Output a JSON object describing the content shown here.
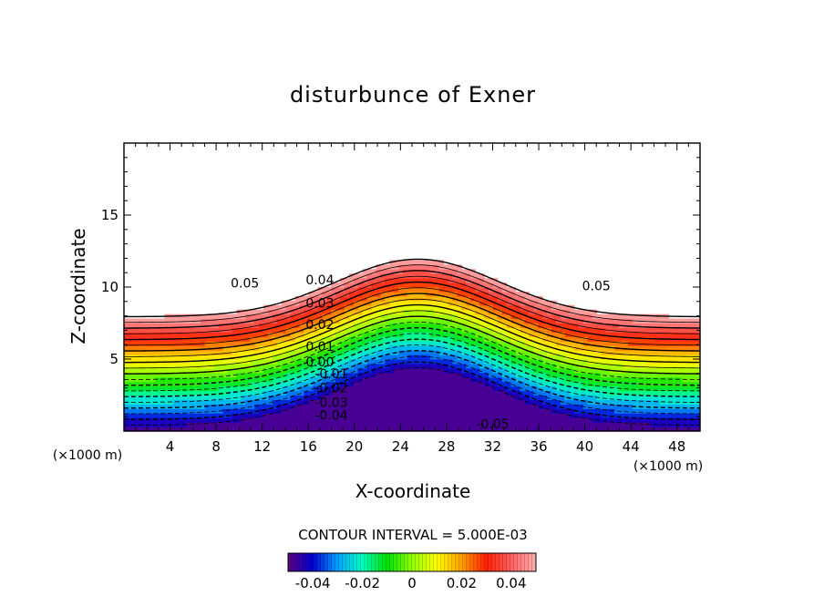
{
  "chart_data": {
    "type": "contour",
    "title": "disturbunce of Exner",
    "xlabel": "X-coordinate",
    "ylabel": "Z-coordinate",
    "x_unit": "(×1000 m)",
    "x_ticks": [
      4,
      8,
      12,
      16,
      20,
      24,
      28,
      32,
      36,
      40,
      44,
      48
    ],
    "y_ticks": [
      5,
      10,
      15
    ],
    "xlim": [
      0,
      50
    ],
    "ylim": [
      0,
      20
    ],
    "contour_interval_text": "CONTOUR INTERVAL = 5.000E-03",
    "contour_interval": 0.005,
    "level_range": [
      -0.05,
      0.05
    ],
    "contour_labels": [
      {
        "text": "0.05",
        "x": 10.5,
        "z": 10.3
      },
      {
        "text": "0.04",
        "x": 17,
        "z": 10.5
      },
      {
        "text": "0.03",
        "x": 17,
        "z": 8.9
      },
      {
        "text": "0.02",
        "x": 17,
        "z": 7.4
      },
      {
        "text": "0.01",
        "x": 17,
        "z": 5.9
      },
      {
        "text": "0.00",
        "x": 17,
        "z": 4.8
      },
      {
        "text": "-0.01",
        "x": 18,
        "z": 4.0
      },
      {
        "text": "-0.02",
        "x": 18,
        "z": 3.0
      },
      {
        "text": "-0.03",
        "x": 18,
        "z": 2.0
      },
      {
        "text": "-0.04",
        "x": 18,
        "z": 1.1
      },
      {
        "text": "-0.05",
        "x": 32,
        "z": 0.5
      },
      {
        "text": "0.05",
        "x": 41,
        "z": 10.1
      }
    ],
    "colorbar": {
      "ticks": [
        "-0.04",
        "-0.02",
        "0",
        "0.02",
        "0.04"
      ],
      "tick_values": [
        -0.04,
        -0.02,
        0,
        0.02,
        0.04
      ],
      "range": [
        -0.05,
        0.05
      ]
    },
    "field": {
      "type": "gaussian ridge perturbation",
      "ridge_center_x": 25.5,
      "ridge_width_x": 10,
      "ridge_height": 4,
      "grid_nx": 128,
      "grid_nz": 64
    },
    "colormap": [
      "#600080",
      "#0000d0",
      "#00a0ff",
      "#00ffc0",
      "#00e000",
      "#90ff00",
      "#ffff00",
      "#ffa000",
      "#ff2000",
      "#ff6060",
      "#ffb0b0"
    ]
  }
}
